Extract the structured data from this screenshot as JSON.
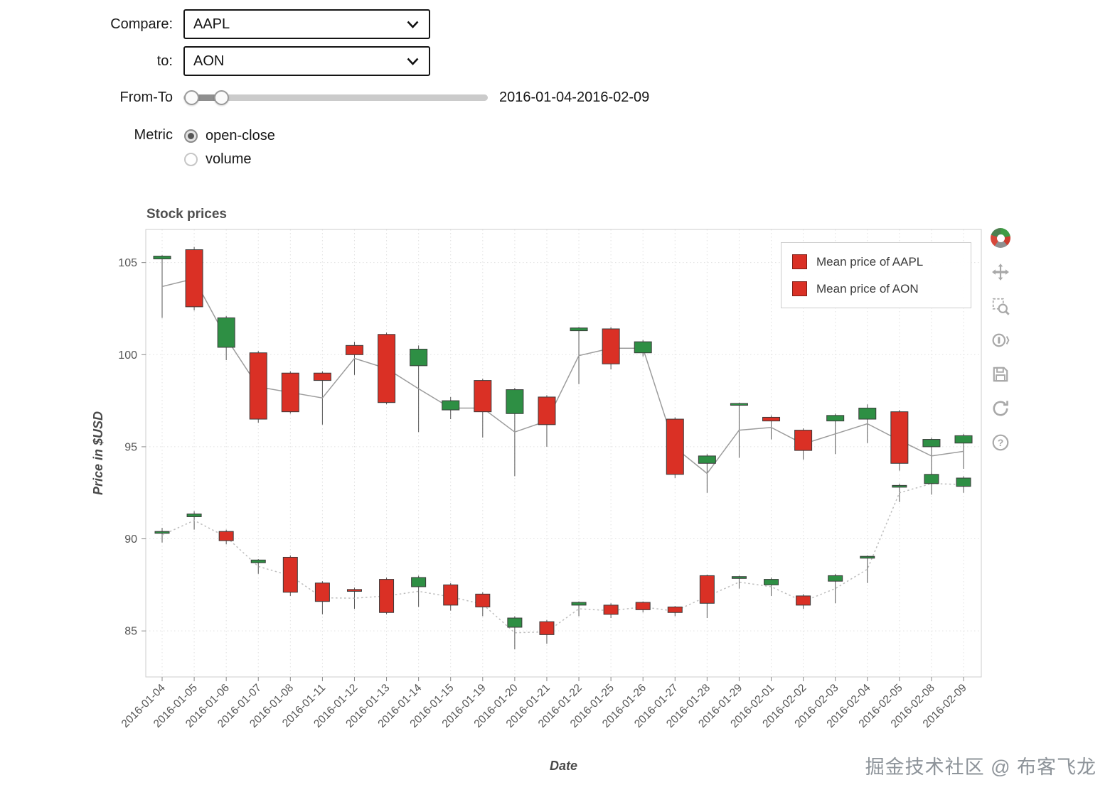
{
  "controls": {
    "compare_label": "Compare:",
    "compare_select": {
      "value": "AAPL"
    },
    "to_label": "to:",
    "to_select": {
      "value": "AON"
    },
    "range_label": "From-To",
    "range_value": "2016-01-04-2016-02-09",
    "metric_label": "Metric",
    "metric_options": [
      {
        "label": "open-close",
        "selected": true
      },
      {
        "label": "volume",
        "selected": false
      }
    ]
  },
  "chart": {
    "title": "Stock prices",
    "legend_items": [
      {
        "label": "Mean price of AAPL",
        "swatch_color": "#da3025"
      },
      {
        "label": "Mean price of AON",
        "swatch_color": "#da3025"
      }
    ]
  },
  "chart_data": {
    "type": "candlestick",
    "title": "Stock prices",
    "xlabel": "Date",
    "ylabel": "Price in $USD",
    "ylim": [
      82.5,
      106.8
    ],
    "yticks": [
      85,
      90,
      95,
      100,
      105
    ],
    "grid": "dotted",
    "legend_position": "top_right",
    "mean_line_note": "gray line per series connects mean of high/low per day",
    "categories": [
      "2016-01-04",
      "2016-01-05",
      "2016-01-06",
      "2016-01-07",
      "2016-01-08",
      "2016-01-11",
      "2016-01-12",
      "2016-01-13",
      "2016-01-14",
      "2016-01-15",
      "2016-01-19",
      "2016-01-20",
      "2016-01-21",
      "2016-01-22",
      "2016-01-25",
      "2016-01-26",
      "2016-01-27",
      "2016-01-28",
      "2016-01-29",
      "2016-02-01",
      "2016-02-02",
      "2016-02-03",
      "2016-02-04",
      "2016-02-05",
      "2016-02-08",
      "2016-02-09"
    ],
    "series": [
      {
        "name": "AAPL",
        "legend": "Mean price of AAPL",
        "open": [
          105.2,
          105.7,
          100.4,
          100.1,
          99.0,
          99.0,
          100.5,
          101.1,
          99.4,
          97.0,
          98.6,
          96.8,
          97.7,
          101.3,
          101.4,
          100.1,
          96.5,
          94.1,
          97.3,
          96.6,
          95.9,
          96.4,
          96.5,
          96.9,
          95.0,
          95.2
        ],
        "high": [
          105.4,
          105.85,
          102.1,
          100.2,
          99.1,
          99.1,
          100.7,
          101.2,
          100.5,
          97.7,
          98.7,
          98.2,
          97.8,
          101.5,
          101.5,
          100.8,
          96.6,
          94.6,
          97.4,
          96.7,
          96.0,
          96.8,
          97.3,
          97.0,
          95.5,
          95.7
        ],
        "low": [
          102.0,
          102.4,
          99.7,
          96.3,
          96.8,
          96.2,
          98.9,
          97.3,
          95.8,
          96.5,
          95.5,
          93.4,
          95.0,
          98.4,
          99.2,
          99.9,
          93.3,
          92.5,
          94.4,
          95.4,
          94.3,
          94.6,
          95.2,
          93.7,
          93.5,
          93.8
        ],
        "close": [
          105.35,
          102.6,
          102.0,
          96.5,
          96.9,
          98.6,
          100.0,
          97.4,
          100.3,
          97.5,
          96.9,
          98.1,
          96.2,
          101.45,
          99.5,
          100.7,
          93.5,
          94.5,
          97.35,
          96.4,
          94.8,
          96.7,
          97.1,
          94.1,
          95.4,
          95.6
        ]
      },
      {
        "name": "AON",
        "legend": "Mean price of AON",
        "open": [
          90.3,
          91.2,
          90.4,
          88.7,
          89.0,
          87.6,
          87.25,
          87.8,
          87.4,
          87.5,
          87.0,
          85.2,
          85.5,
          86.4,
          86.4,
          86.55,
          86.3,
          88.0,
          87.85,
          87.5,
          86.9,
          87.7,
          88.95,
          92.85,
          93.0,
          92.85
        ],
        "high": [
          90.6,
          91.5,
          90.5,
          88.9,
          89.1,
          87.7,
          87.35,
          87.9,
          88.0,
          87.6,
          87.1,
          85.8,
          85.6,
          86.6,
          86.5,
          86.6,
          86.35,
          88.05,
          88.0,
          87.9,
          87.0,
          88.1,
          89.1,
          93.0,
          93.6,
          93.4
        ],
        "low": [
          89.8,
          90.5,
          89.7,
          88.1,
          86.9,
          85.9,
          86.2,
          85.9,
          86.3,
          86.1,
          85.8,
          84.0,
          84.3,
          85.8,
          85.7,
          86.0,
          85.8,
          85.7,
          87.3,
          86.9,
          86.2,
          86.5,
          87.6,
          92.0,
          92.4,
          92.5
        ],
        "close": [
          90.4,
          91.35,
          89.9,
          88.85,
          87.1,
          86.6,
          87.15,
          86.0,
          87.9,
          86.4,
          86.3,
          85.7,
          84.8,
          86.55,
          85.9,
          86.15,
          86.0,
          86.5,
          87.95,
          87.8,
          86.4,
          88.0,
          89.05,
          92.9,
          93.5,
          93.3
        ]
      }
    ]
  },
  "toolbar": {
    "tools": [
      "bokeh-logo",
      "pan",
      "box-zoom",
      "wheel-zoom",
      "save",
      "reset",
      "help"
    ]
  },
  "watermark": "掘金技术社区 @ 布客飞龙",
  "colors": {
    "up": "#2e8f44",
    "down": "#da3025",
    "wick": "#555555",
    "mean_line_aapl": "#9c9c9c",
    "mean_line_aon": "#bdbdbd",
    "grid": "#e0e0e0",
    "axis_text": "#555555",
    "frame_border": "#cccccc"
  }
}
